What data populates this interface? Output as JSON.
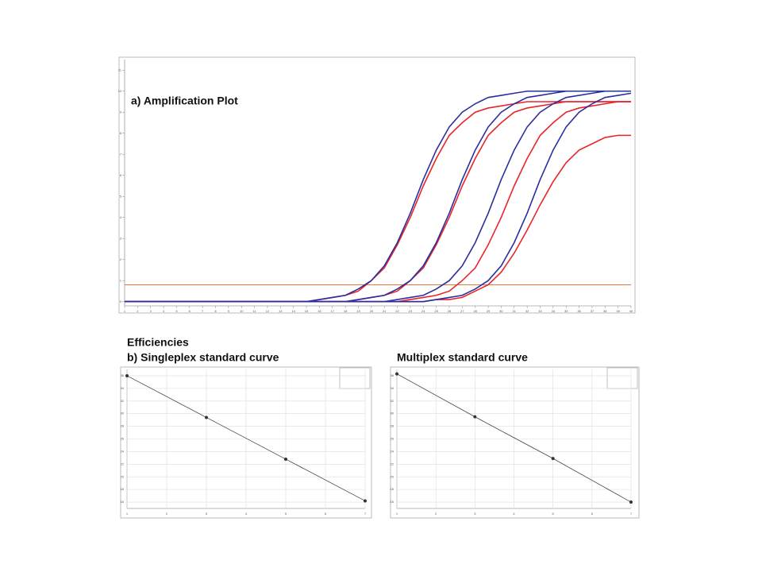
{
  "heading": "Efficiencies",
  "chart_data": [
    {
      "type": "line",
      "title": "a) Amplification Plot",
      "x": [
        1,
        2,
        3,
        4,
        5,
        6,
        7,
        8,
        9,
        10,
        11,
        12,
        13,
        14,
        15,
        16,
        17,
        18,
        19,
        20,
        21,
        22,
        23,
        24,
        25,
        26,
        27,
        28,
        29,
        30,
        31,
        32,
        33,
        34,
        35,
        36,
        37,
        38,
        39,
        40
      ],
      "xlim": [
        1,
        40
      ],
      "xticks": [
        1,
        2,
        3,
        4,
        5,
        6,
        7,
        8,
        9,
        10,
        11,
        12,
        13,
        14,
        15,
        16,
        17,
        18,
        19,
        20,
        21,
        22,
        23,
        24,
        25,
        26,
        27,
        28,
        29,
        30,
        31,
        32,
        33,
        34,
        35,
        36,
        37,
        38,
        39,
        40
      ],
      "ylim": [
        -0.2,
        11.5
      ],
      "yticks": [
        0,
        1,
        2,
        3,
        4,
        5,
        6,
        7,
        8,
        9,
        10,
        11
      ],
      "threshold": 0.8,
      "threshold_color": "#e07a3a",
      "grid": false,
      "series": [
        {
          "color": "#e8262a",
          "values": [
            0,
            0,
            0,
            0,
            0,
            0,
            0,
            0,
            0,
            0,
            0,
            0,
            0,
            0,
            0,
            0.1,
            0.2,
            0.3,
            0.5,
            1.0,
            1.6,
            2.7,
            4.0,
            5.5,
            6.8,
            7.9,
            8.5,
            9.0,
            9.2,
            9.3,
            9.4,
            9.5,
            9.5,
            9.5,
            9.5,
            9.5,
            9.5,
            9.5,
            9.5,
            9.5
          ]
        },
        {
          "color": "#e8262a",
          "values": [
            0,
            0,
            0,
            0,
            0,
            0,
            0,
            0,
            0,
            0,
            0,
            0,
            0,
            0,
            0,
            0,
            0,
            0,
            0.1,
            0.2,
            0.3,
            0.5,
            1.0,
            1.6,
            2.7,
            4.0,
            5.5,
            6.8,
            7.9,
            8.5,
            9.0,
            9.2,
            9.3,
            9.4,
            9.5,
            9.5,
            9.5,
            9.5,
            9.5,
            9.5
          ]
        },
        {
          "color": "#e8262a",
          "values": [
            0,
            0,
            0,
            0,
            0,
            0,
            0,
            0,
            0,
            0,
            0,
            0,
            0,
            0,
            0,
            0,
            0,
            0,
            0,
            0,
            0,
            0,
            0.1,
            0.2,
            0.3,
            0.5,
            1.0,
            1.6,
            2.7,
            4.0,
            5.5,
            6.8,
            7.9,
            8.5,
            9.0,
            9.2,
            9.3,
            9.4,
            9.5,
            9.5
          ]
        },
        {
          "color": "#e8262a",
          "values": [
            0,
            0,
            0,
            0,
            0,
            0,
            0,
            0,
            0,
            0,
            0,
            0,
            0,
            0,
            0,
            0,
            0,
            0,
            0,
            0,
            0,
            0,
            0,
            0,
            0.1,
            0.1,
            0.2,
            0.5,
            0.8,
            1.4,
            2.3,
            3.4,
            4.6,
            5.7,
            6.6,
            7.2,
            7.5,
            7.8,
            7.9,
            7.9
          ]
        },
        {
          "color": "#2b2f9e",
          "values": [
            0,
            0,
            0,
            0,
            0,
            0,
            0,
            0,
            0,
            0,
            0,
            0,
            0,
            0,
            0,
            0.1,
            0.2,
            0.3,
            0.6,
            1.0,
            1.7,
            2.8,
            4.2,
            5.8,
            7.2,
            8.3,
            9.0,
            9.4,
            9.7,
            9.8,
            9.9,
            10.0,
            10.0,
            10.0,
            10.0,
            10.0,
            10.0,
            10.0,
            10.0,
            10.0
          ]
        },
        {
          "color": "#2b2f9e",
          "values": [
            0,
            0,
            0,
            0,
            0,
            0,
            0,
            0,
            0,
            0,
            0,
            0,
            0,
            0,
            0,
            0,
            0,
            0,
            0.1,
            0.2,
            0.3,
            0.6,
            1.0,
            1.7,
            2.8,
            4.2,
            5.8,
            7.2,
            8.3,
            9.0,
            9.4,
            9.7,
            9.8,
            9.9,
            10.0,
            10.0,
            10.0,
            10.0,
            10.0,
            10.0
          ]
        },
        {
          "color": "#2b2f9e",
          "values": [
            0,
            0,
            0,
            0,
            0,
            0,
            0,
            0,
            0,
            0,
            0,
            0,
            0,
            0,
            0,
            0,
            0,
            0,
            0,
            0,
            0,
            0.1,
            0.2,
            0.3,
            0.6,
            1.0,
            1.7,
            2.8,
            4.2,
            5.8,
            7.2,
            8.3,
            9.0,
            9.4,
            9.7,
            9.8,
            9.9,
            10.0,
            10.0,
            10.0
          ]
        },
        {
          "color": "#2b2f9e",
          "values": [
            0,
            0,
            0,
            0,
            0,
            0,
            0,
            0,
            0,
            0,
            0,
            0,
            0,
            0,
            0,
            0,
            0,
            0,
            0,
            0,
            0,
            0,
            0,
            0,
            0.1,
            0.2,
            0.3,
            0.6,
            1.0,
            1.7,
            2.8,
            4.2,
            5.8,
            7.2,
            8.3,
            9.0,
            9.4,
            9.7,
            9.8,
            9.9
          ]
        }
      ]
    },
    {
      "type": "scatter",
      "title": "b) Singleplex standard curve",
      "x": [
        1,
        3,
        5,
        7
      ],
      "values": [
        36,
        29.4,
        22.8,
        16.2
      ],
      "color": "#333333",
      "xlim": [
        1,
        7
      ],
      "xticks": [
        1,
        2,
        3,
        4,
        5,
        6,
        7
      ],
      "ylim": [
        15,
        37
      ],
      "yticks": [
        16,
        18,
        20,
        22,
        24,
        26,
        28,
        30,
        32,
        34,
        36
      ],
      "grid": true
    },
    {
      "type": "scatter",
      "title": "Multiplex standard curve",
      "x": [
        1,
        3,
        5,
        7
      ],
      "values": [
        36.3,
        29.5,
        22.9,
        16.0
      ],
      "color": "#333333",
      "xlim": [
        1,
        7
      ],
      "xticks": [
        1,
        2,
        3,
        4,
        5,
        6,
        7
      ],
      "ylim": [
        15,
        37
      ],
      "yticks": [
        16,
        18,
        20,
        22,
        24,
        26,
        28,
        30,
        32,
        34,
        36
      ],
      "grid": true
    }
  ]
}
